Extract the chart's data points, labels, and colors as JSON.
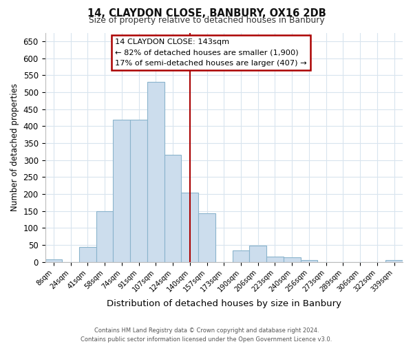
{
  "title": "14, CLAYDON CLOSE, BANBURY, OX16 2DB",
  "subtitle": "Size of property relative to detached houses in Banbury",
  "xlabel": "Distribution of detached houses by size in Banbury",
  "ylabel": "Number of detached properties",
  "bar_color": "#ccdded",
  "bar_edgecolor": "#8ab4cc",
  "bin_labels": [
    "8sqm",
    "24sqm",
    "41sqm",
    "58sqm",
    "74sqm",
    "91sqm",
    "107sqm",
    "124sqm",
    "140sqm",
    "157sqm",
    "173sqm",
    "190sqm",
    "206sqm",
    "223sqm",
    "240sqm",
    "256sqm",
    "273sqm",
    "289sqm",
    "306sqm",
    "322sqm",
    "339sqm"
  ],
  "bar_heights": [
    8,
    0,
    44,
    150,
    418,
    418,
    530,
    315,
    205,
    143,
    0,
    35,
    48,
    15,
    13,
    5,
    0,
    0,
    0,
    0,
    5
  ],
  "ylim": [
    0,
    675
  ],
  "yticks": [
    0,
    50,
    100,
    150,
    200,
    250,
    300,
    350,
    400,
    450,
    500,
    550,
    600,
    650
  ],
  "vline_x": 8.5,
  "vline_color": "#aa0000",
  "annotation_title": "14 CLAYDON CLOSE: 143sqm",
  "annotation_line1": "← 82% of detached houses are smaller (1,900)",
  "annotation_line2": "17% of semi-detached houses are larger (407) →",
  "annotation_box_color": "#ffffff",
  "annotation_box_edgecolor": "#aa0000",
  "footer_line1": "Contains HM Land Registry data © Crown copyright and database right 2024.",
  "footer_line2": "Contains public sector information licensed under the Open Government Licence v3.0.",
  "background_color": "#ffffff",
  "grid_color": "#d8e4ee"
}
